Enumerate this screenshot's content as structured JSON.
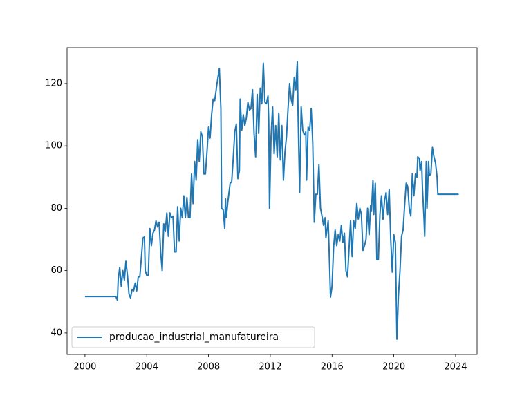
{
  "chart_data": {
    "type": "line",
    "x": [
      2000,
      2002.0,
      2002.1,
      2002.15,
      2002.25,
      2002.35,
      2002.45,
      2002.55,
      2002.65,
      2002.75,
      2002.85,
      2002.95,
      2003.05,
      2003.15,
      2003.25,
      2003.35,
      2003.45,
      2003.55,
      2003.65,
      2003.75,
      2003.85,
      2003.9,
      2004.0,
      2004.1,
      2004.2,
      2004.3,
      2004.4,
      2004.5,
      2004.6,
      2004.7,
      2004.8,
      2004.9,
      2005.0,
      2005.1,
      2005.2,
      2005.3,
      2005.4,
      2005.5,
      2005.6,
      2005.7,
      2005.8,
      2005.9,
      2006.0,
      2006.1,
      2006.2,
      2006.3,
      2006.4,
      2006.5,
      2006.6,
      2006.7,
      2006.8,
      2006.9,
      2007.0,
      2007.1,
      2007.2,
      2007.3,
      2007.4,
      2007.5,
      2007.6,
      2007.7,
      2007.8,
      2007.9,
      2008.0,
      2008.1,
      2008.2,
      2008.3,
      2008.4,
      2008.55,
      2008.7,
      2008.8,
      2008.85,
      2008.95,
      2009.05,
      2009.1,
      2009.15,
      2009.25,
      2009.4,
      2009.5,
      2009.6,
      2009.7,
      2009.8,
      2009.9,
      2010.0,
      2010.05,
      2010.15,
      2010.25,
      2010.35,
      2010.45,
      2010.55,
      2010.65,
      2010.75,
      2010.85,
      2010.95,
      2011.05,
      2011.15,
      2011.25,
      2011.35,
      2011.45,
      2011.55,
      2011.65,
      2011.75,
      2011.85,
      2011.9,
      2011.95,
      2012.05,
      2012.15,
      2012.25,
      2012.35,
      2012.45,
      2012.55,
      2012.65,
      2012.75,
      2012.85,
      2012.95,
      2013.05,
      2013.15,
      2013.25,
      2013.35,
      2013.45,
      2013.55,
      2013.65,
      2013.75,
      2013.8,
      2013.9,
      2014.0,
      2014.1,
      2014.2,
      2014.3,
      2014.35,
      2014.45,
      2014.55,
      2014.65,
      2014.75,
      2014.85,
      2014.95,
      2015.05,
      2015.15,
      2015.25,
      2015.35,
      2015.45,
      2015.55,
      2015.6,
      2015.7,
      2015.75,
      2015.8,
      2015.9,
      2016.0,
      2016.1,
      2016.2,
      2016.3,
      2016.4,
      2016.5,
      2016.6,
      2016.7,
      2016.8,
      2016.9,
      2017.0,
      2017.1,
      2017.2,
      2017.3,
      2017.4,
      2017.5,
      2017.6,
      2017.7,
      2017.8,
      2017.9,
      2018.0,
      2018.1,
      2018.2,
      2018.3,
      2018.4,
      2018.5,
      2018.55,
      2018.65,
      2018.7,
      2018.8,
      2018.9,
      2019.0,
      2019.1,
      2019.2,
      2019.3,
      2019.4,
      2019.5,
      2019.6,
      2019.7,
      2019.8,
      2019.9,
      2020.0,
      2020.1,
      2020.2,
      2020.3,
      2020.4,
      2020.5,
      2020.6,
      2020.7,
      2020.8,
      2020.9,
      2021.0,
      2021.1,
      2021.2,
      2021.3,
      2021.4,
      2021.5,
      2021.55,
      2021.65,
      2021.7,
      2021.8,
      2021.85,
      2021.95,
      2022.0,
      2022.1,
      2022.15,
      2022.25,
      2022.3,
      2022.4,
      2022.5,
      2022.6,
      2022.7,
      2022.8,
      2022.85,
      2024.2
    ],
    "series": [
      {
        "name": "producao_industrial_manufatureira",
        "color": "#1f77b4",
        "values": [
          51.7,
          51.7,
          50.5,
          57,
          61,
          55,
          60,
          57,
          63,
          58.5,
          52.5,
          51.2,
          54,
          53.5,
          56,
          53.5,
          58,
          58,
          64,
          70.5,
          70.8,
          60,
          58.5,
          58.5,
          73.5,
          68,
          72,
          73,
          76,
          74,
          75.5,
          66,
          60,
          75,
          72.5,
          78.5,
          71,
          78.5,
          77,
          77.5,
          66,
          66,
          80.5,
          69.5,
          80,
          77,
          84,
          77,
          83.5,
          77,
          77,
          91,
          81.5,
          95,
          89,
          102,
          95,
          104.5,
          103,
          91,
          91,
          98,
          106,
          102.5,
          110,
          115,
          114.5,
          120,
          124.8,
          112,
          80,
          79.5,
          73.5,
          83,
          77,
          82,
          88,
          88.5,
          96,
          104.5,
          107,
          89.5,
          92,
          115,
          105,
          110,
          106.5,
          109,
          114,
          111.5,
          112,
          118,
          104,
          96.5,
          116.5,
          104,
          118.5,
          113.5,
          126.5,
          114,
          113.5,
          116,
          108,
          80,
          103,
          112.5,
          97.5,
          106.5,
          96.5,
          110.5,
          95.5,
          106.5,
          89,
          98,
          103,
          112,
          120,
          115,
          113,
          122,
          118,
          127,
          110,
          85,
          112.5,
          105,
          103.5,
          104.5,
          89,
          106,
          105,
          112,
          101,
          75.5,
          84.5,
          84.5,
          94,
          80,
          77.5,
          74.5,
          77,
          70.5,
          74,
          76,
          68,
          51.5,
          55,
          67.5,
          73,
          68,
          71.5,
          69.5,
          74.5,
          69,
          72,
          60,
          58,
          67,
          76,
          64.5,
          76,
          73.5,
          81.5,
          76.5,
          80,
          78,
          66.5,
          68,
          70,
          80,
          71.5,
          81,
          79,
          89,
          78,
          88,
          63.5,
          63.5,
          78,
          84,
          76.5,
          82.5,
          85,
          78,
          86,
          70,
          59.5,
          71.5,
          69,
          38,
          52,
          60,
          71,
          73,
          81,
          88,
          87,
          80,
          77.5,
          91,
          84,
          91,
          90,
          96.5,
          96,
          92,
          95,
          87,
          77,
          71,
          95,
          80,
          95,
          90.5,
          91,
          99.5,
          96.5,
          94.5,
          90,
          84.5,
          84.5
        ]
      }
    ],
    "xlim": [
      1998.84,
      2025.39
    ],
    "xticks": [
      2000,
      2004,
      2008,
      2012,
      2016,
      2020,
      2024
    ],
    "ylim": [
      33.1,
      131.5
    ],
    "yticks": [
      40,
      60,
      80,
      100,
      120
    ],
    "grid": false,
    "legend": "lower left"
  }
}
